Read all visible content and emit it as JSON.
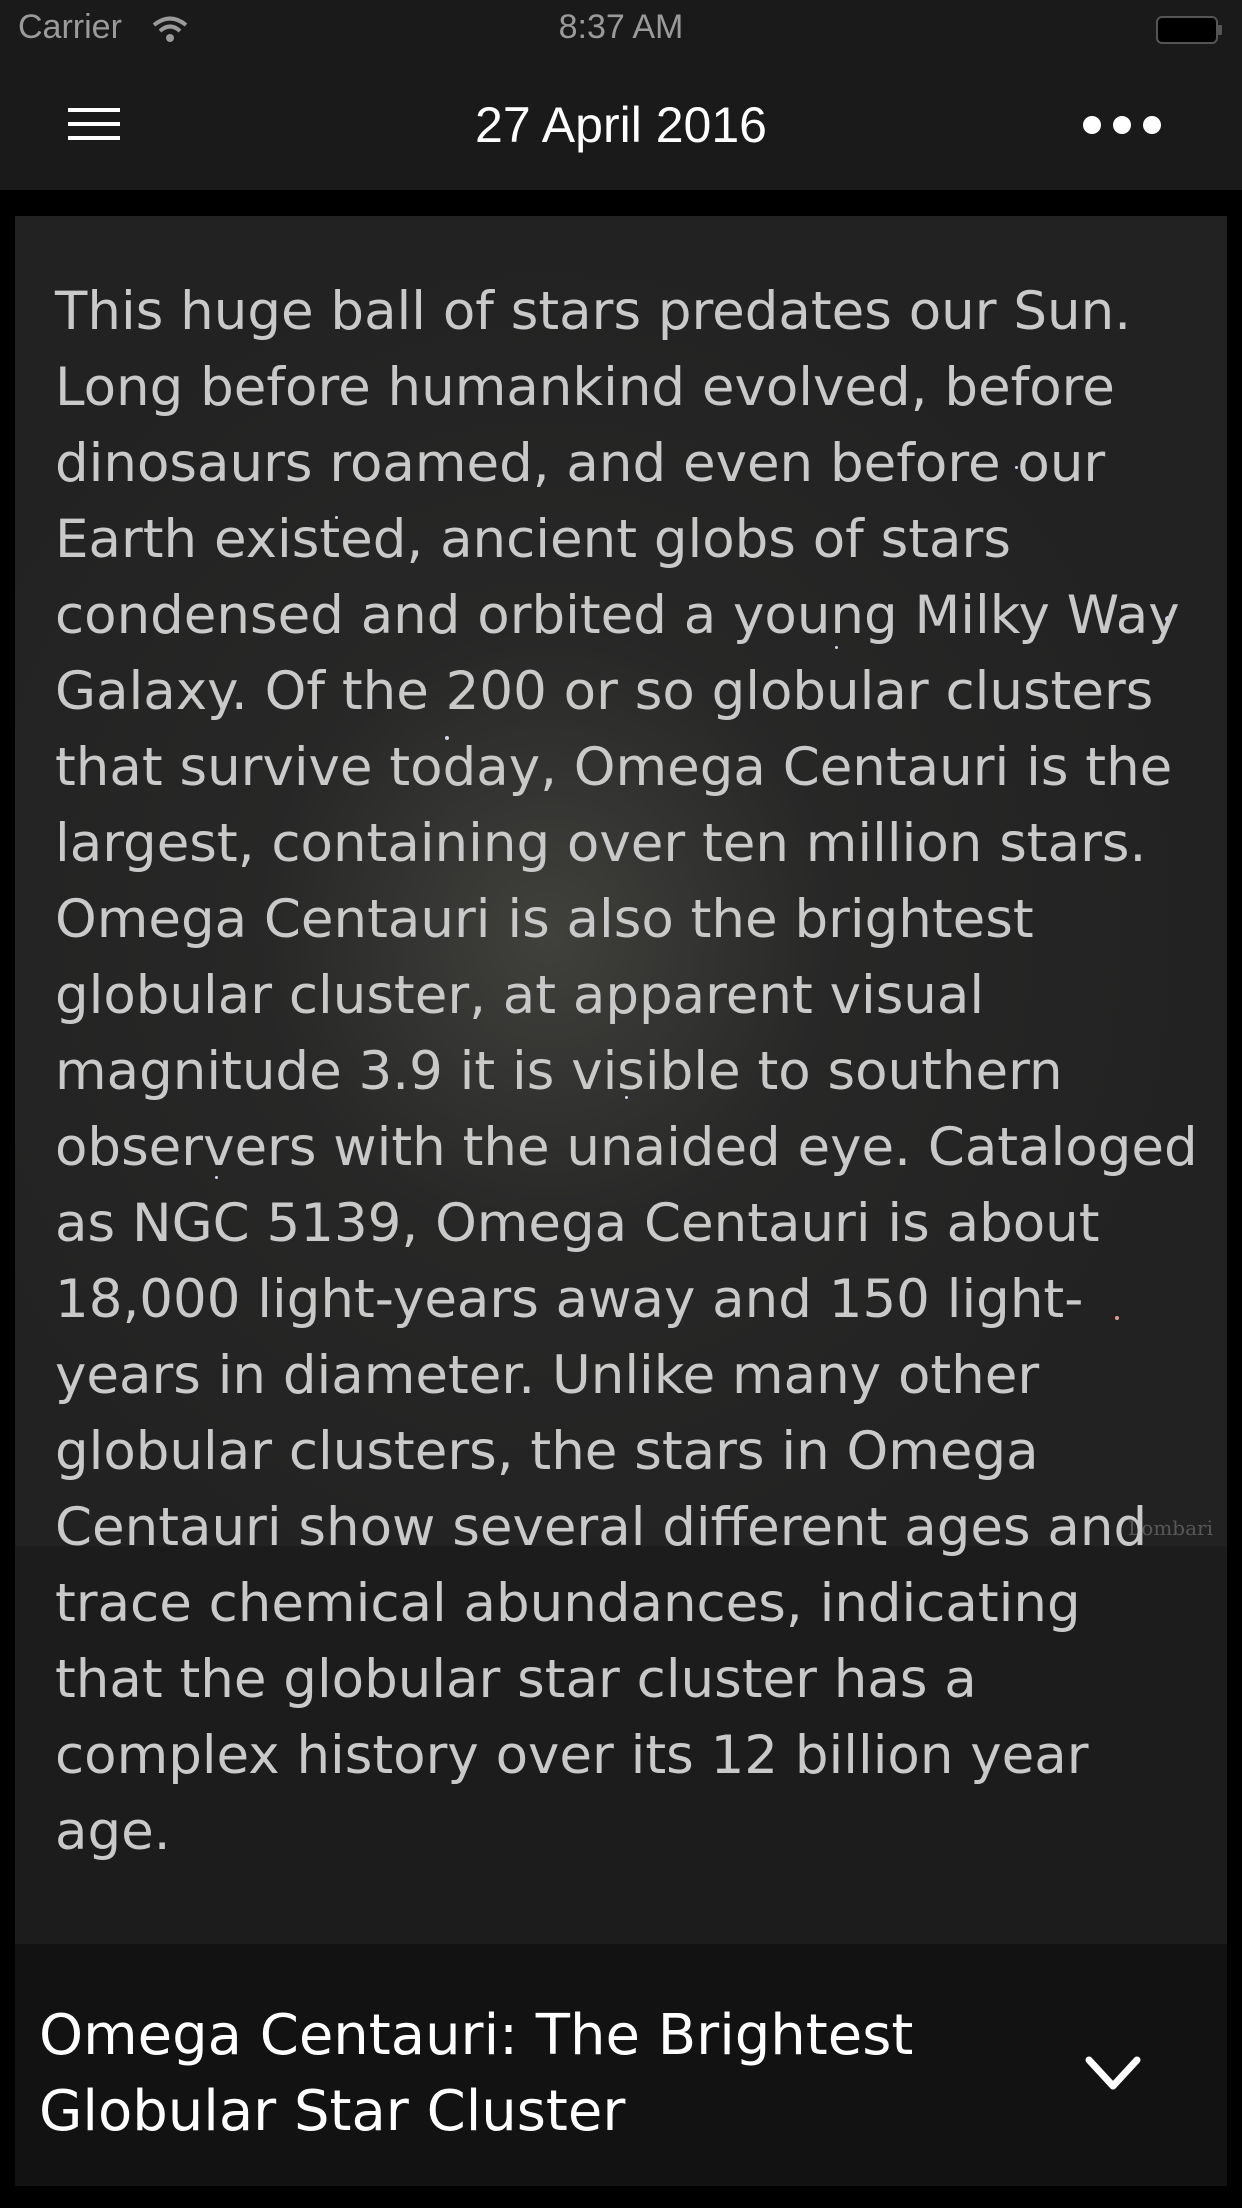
{
  "status_bar": {
    "carrier": "Carrier",
    "time": "8:37 AM",
    "icons": [
      "wifi-icon",
      "battery-icon"
    ]
  },
  "nav": {
    "title": "27 April 2016",
    "left_icon": "hamburger-menu-icon",
    "right_icon": "more-options-icon"
  },
  "article": {
    "body": "This huge ball of stars predates our Sun. Long before humankind evolved, before dinosaurs roamed, and even before our Earth existed, ancient globs of stars condensed and orbited a young Milky Way Galaxy. Of the 200 or so globular clusters that survive today, Omega Centauri is the largest, containing over ten million stars. Omega Centauri is also the brightest globular cluster, at apparent visual magnitude 3.9 it is visible to southern observers with the unaided eye. Cataloged as NGC 5139, Omega Centauri is about 18,000 light-years away and 150 light-years in diameter.  Unlike many other globular clusters, the stars in Omega Centauri show several different ages and trace chemical abundances, indicating that the globular star cluster has a complex history over its 12 billion year age.",
    "image_credit": "Lombari",
    "title": "Omega Centauri: The Brightest Globular Star Cluster",
    "collapse_icon": "chevron-down-icon"
  },
  "colors": {
    "background": "#000000",
    "bar": "#1a1a1a",
    "card": "#1c1c1c",
    "body_text": "#c9c9c9",
    "title_text": "#ffffff"
  }
}
